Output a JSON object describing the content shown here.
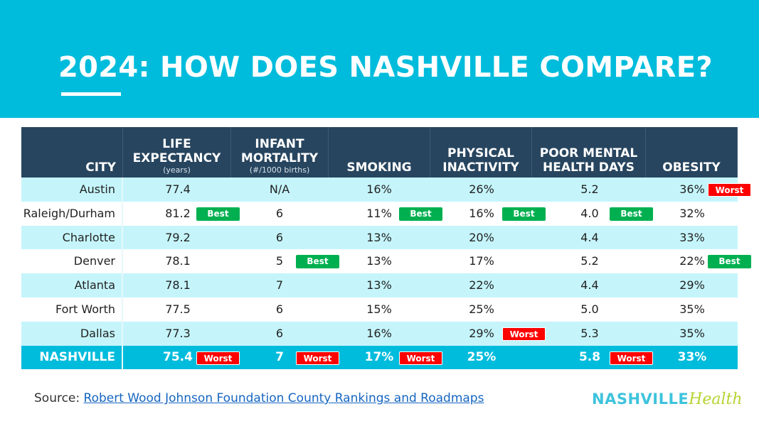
{
  "title": "2024: HOW DOES NASHVILLE COMPARE?",
  "colors": {
    "banner": "#00bcdc",
    "header": "#27455f",
    "alt_row": "#c5f5fb",
    "best": "#00b050",
    "worst": "#ff0000"
  },
  "chart_data": {
    "type": "table",
    "columns": [
      {
        "label": "CITY",
        "sub": ""
      },
      {
        "label": "LIFE EXPECTANCY",
        "sub": "(years)"
      },
      {
        "label": "INFANT MORTALITY",
        "sub": "(#/1000 births)"
      },
      {
        "label": "SMOKING",
        "sub": ""
      },
      {
        "label": "PHYSICAL INACTIVITY",
        "sub": ""
      },
      {
        "label": "POOR MENTAL HEALTH DAYS",
        "sub": ""
      },
      {
        "label": "OBESITY",
        "sub": ""
      }
    ],
    "rows": [
      {
        "city": "Austin",
        "cells": [
          [
            "77.4",
            ""
          ],
          [
            "N/A",
            ""
          ],
          [
            "16%",
            ""
          ],
          [
            "26%",
            ""
          ],
          [
            "5.2",
            ""
          ],
          [
            "36%",
            "Worst"
          ]
        ]
      },
      {
        "city": "Raleigh/Durham",
        "cells": [
          [
            "81.2",
            "Best"
          ],
          [
            "6",
            ""
          ],
          [
            "11%",
            "Best"
          ],
          [
            "16%",
            "Best"
          ],
          [
            "4.0",
            "Best"
          ],
          [
            "32%",
            ""
          ]
        ]
      },
      {
        "city": "Charlotte",
        "cells": [
          [
            "79.2",
            ""
          ],
          [
            "6",
            ""
          ],
          [
            "13%",
            ""
          ],
          [
            "20%",
            ""
          ],
          [
            "4.4",
            ""
          ],
          [
            "33%",
            ""
          ]
        ]
      },
      {
        "city": "Denver",
        "cells": [
          [
            "78.1",
            ""
          ],
          [
            "5",
            "Best"
          ],
          [
            "13%",
            ""
          ],
          [
            "17%",
            ""
          ],
          [
            "5.2",
            ""
          ],
          [
            "22%",
            "Best"
          ]
        ]
      },
      {
        "city": "Atlanta",
        "cells": [
          [
            "78.1",
            ""
          ],
          [
            "7",
            ""
          ],
          [
            "13%",
            ""
          ],
          [
            "22%",
            ""
          ],
          [
            "4.4",
            ""
          ],
          [
            "29%",
            ""
          ]
        ]
      },
      {
        "city": "Fort Worth",
        "cells": [
          [
            "77.5",
            ""
          ],
          [
            "6",
            ""
          ],
          [
            "15%",
            ""
          ],
          [
            "25%",
            ""
          ],
          [
            "5.0",
            ""
          ],
          [
            "35%",
            ""
          ]
        ]
      },
      {
        "city": "Dallas",
        "cells": [
          [
            "77.3",
            ""
          ],
          [
            "6",
            ""
          ],
          [
            "16%",
            ""
          ],
          [
            "29%",
            "Worst"
          ],
          [
            "5.3",
            ""
          ],
          [
            "35%",
            ""
          ]
        ]
      },
      {
        "city": "NASHVILLE",
        "cells": [
          [
            "75.4",
            "Worst"
          ],
          [
            "7",
            "Worst"
          ],
          [
            "17%",
            "Worst"
          ],
          [
            "25%",
            ""
          ],
          [
            "5.8",
            "Worst"
          ],
          [
            "33%",
            ""
          ]
        ]
      }
    ]
  },
  "source": {
    "label": "Source: ",
    "link": "Robert Wood Johnson Foundation County Rankings and Roadmaps"
  },
  "logo": {
    "word1": "NASHVILLE",
    "word2": "Health"
  }
}
